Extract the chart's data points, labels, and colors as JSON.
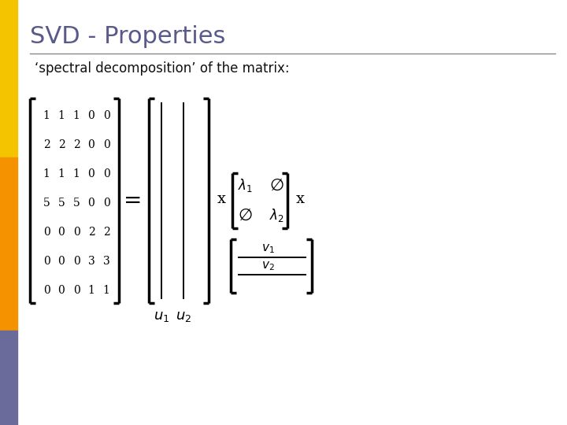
{
  "title": "SVD - Properties",
  "subtitle": "‘spectral decomposition’ of the matrix:",
  "bg_color": "#ffffff",
  "title_color": "#5a5a8a",
  "subtitle_color": "#111111",
  "title_fontsize": 22,
  "subtitle_fontsize": 12,
  "sidebar_colors": [
    "#f5c400",
    "#f59200",
    "#6b6b9b"
  ],
  "matrix_data": [
    [
      1,
      1,
      1,
      0,
      0
    ],
    [
      2,
      2,
      2,
      0,
      0
    ],
    [
      1,
      1,
      1,
      0,
      0
    ],
    [
      5,
      5,
      5,
      0,
      0
    ],
    [
      0,
      0,
      0,
      2,
      2
    ],
    [
      0,
      0,
      0,
      3,
      3
    ],
    [
      0,
      0,
      0,
      1,
      1
    ]
  ]
}
